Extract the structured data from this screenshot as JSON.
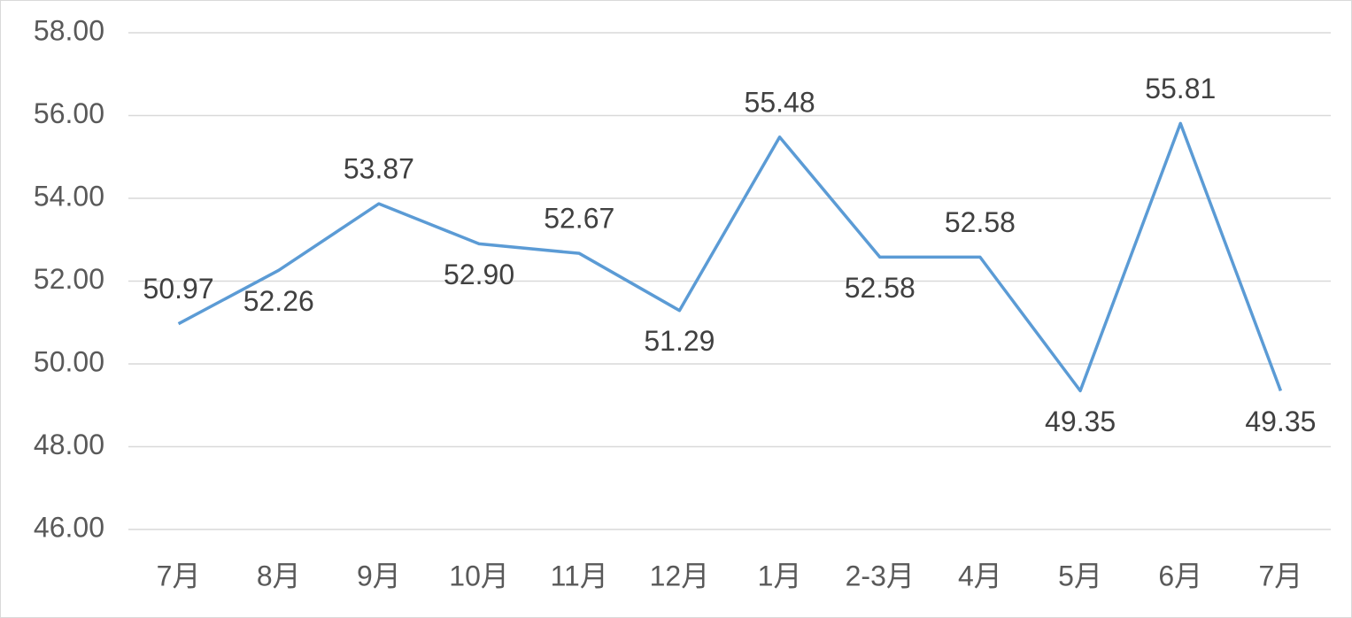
{
  "chart_data": {
    "type": "line",
    "categories": [
      "7月",
      "8月",
      "9月",
      "10月",
      "11月",
      "12月",
      "1月",
      "2-3月",
      "4月",
      "5月",
      "6月",
      "7月"
    ],
    "series": [
      {
        "color": "#5b9bd5",
        "values": [
          50.97,
          52.26,
          53.87,
          52.9,
          52.67,
          51.29,
          55.48,
          52.58,
          52.58,
          49.35,
          55.81,
          49.35
        ],
        "value_labels": [
          "50.97",
          "52.26",
          "53.87",
          "52.90",
          "52.67",
          "51.29",
          "55.48",
          "52.58",
          "52.58",
          "49.35",
          "55.81",
          "49.35"
        ]
      }
    ],
    "ylim": [
      46,
      58
    ],
    "yticks": [
      {
        "value": 46,
        "label": "46.00"
      },
      {
        "value": 48,
        "label": "48.00"
      },
      {
        "value": 50,
        "label": "50.00"
      },
      {
        "value": 52,
        "label": "52.00"
      },
      {
        "value": 54,
        "label": "54.00"
      },
      {
        "value": 56,
        "label": "56.00"
      },
      {
        "value": 58,
        "label": "58.00"
      }
    ],
    "grid": true
  }
}
